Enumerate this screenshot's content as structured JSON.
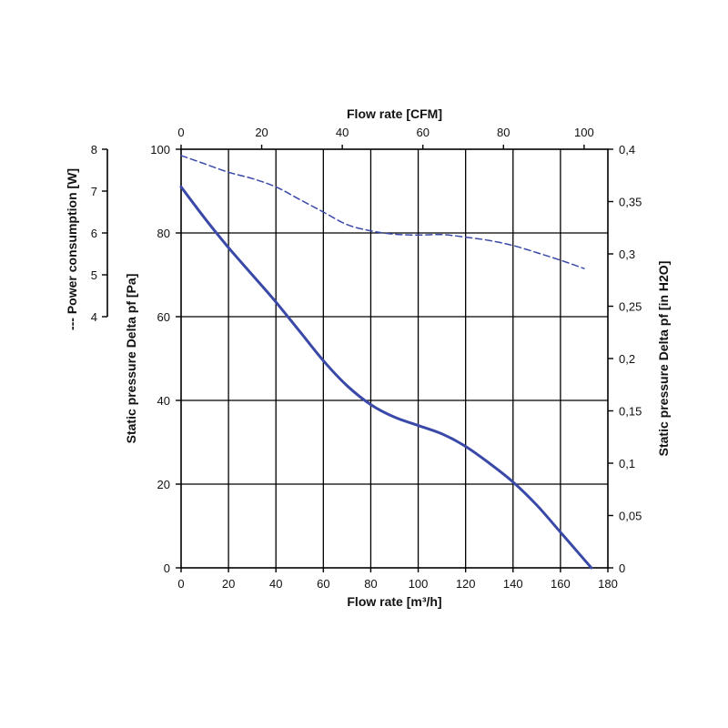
{
  "chart_data": {
    "type": "line",
    "grid": true,
    "x_axis_bottom": {
      "label": "Flow rate [m³/h]",
      "range": [
        0,
        180
      ],
      "ticks": [
        "0",
        "20",
        "40",
        "60",
        "80",
        "100",
        "120",
        "140",
        "160",
        "180"
      ]
    },
    "x_axis_top": {
      "label": "Flow rate [CFM]",
      "range": [
        0,
        105.9
      ],
      "ticks": [
        "0",
        "20",
        "40",
        "60",
        "80",
        "100"
      ]
    },
    "y_axis_left": {
      "label": "Static pressure Delta pf [Pa]",
      "range": [
        0,
        100
      ],
      "ticks": [
        "0",
        "20",
        "40",
        "60",
        "80",
        "100"
      ]
    },
    "y_axis_right": {
      "label": "Static pressure Delta pf [in H2O]",
      "range": [
        0,
        0.4
      ],
      "ticks": [
        "0",
        "0,05",
        "0,1",
        "0,15",
        "0,2",
        "0,25",
        "0,3",
        "0,35",
        "0,4"
      ]
    },
    "y_axis_power": {
      "label": "--- Power consumption [W]",
      "range": [
        4,
        8
      ],
      "ticks": [
        "4",
        "5",
        "6",
        "7",
        "8"
      ]
    },
    "series": [
      {
        "style": "solid",
        "axis": "pressure_pa",
        "color": "#3a49a8",
        "x": [
          0,
          10,
          20,
          30,
          40,
          50,
          60,
          70,
          80,
          90,
          100,
          110,
          120,
          130,
          140,
          150,
          160,
          170,
          173
        ],
        "y": [
          91,
          83.5,
          76.5,
          70,
          63.5,
          56.5,
          49.5,
          43.5,
          39,
          36,
          34,
          32,
          29,
          25,
          20.5,
          15,
          8.5,
          2,
          0
        ]
      },
      {
        "style": "dashed",
        "axis": "power_w",
        "color": "#3a49a8",
        "x": [
          0,
          10,
          20,
          30,
          40,
          50,
          60,
          70,
          80,
          90,
          100,
          110,
          120,
          130,
          140,
          150,
          160,
          170
        ],
        "y": [
          7.85,
          7.65,
          7.45,
          7.3,
          7.1,
          6.8,
          6.5,
          6.2,
          6.05,
          5.97,
          5.95,
          5.96,
          5.9,
          5.82,
          5.7,
          5.53,
          5.35,
          5.15
        ]
      }
    ]
  }
}
